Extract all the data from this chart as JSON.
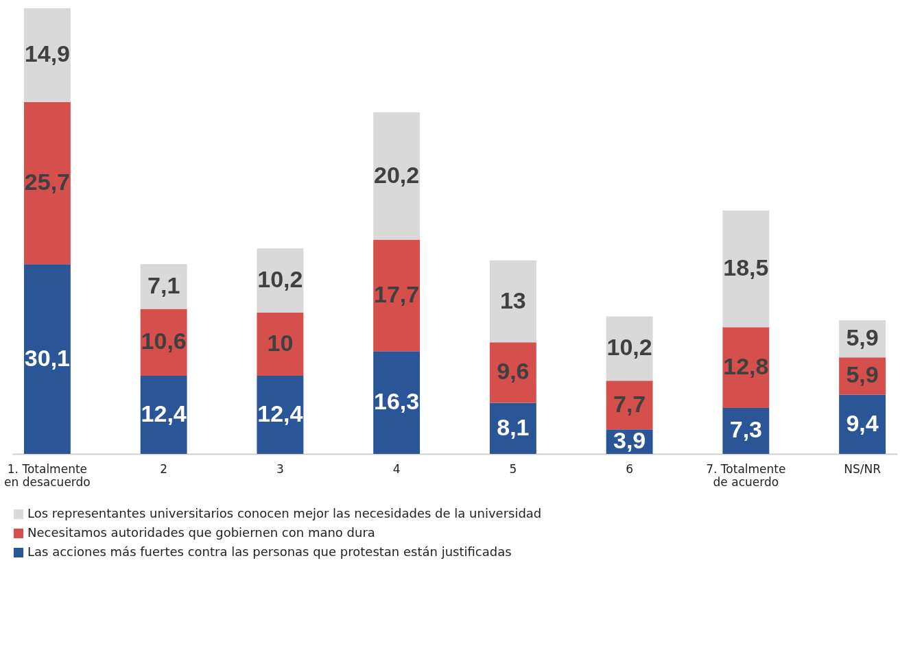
{
  "chart_data": {
    "type": "bar",
    "stacked": true,
    "legend": "bottom",
    "categories": [
      "1. Totalmente\nen desacuerdo",
      "2",
      "3",
      "4",
      "5",
      "6",
      "7. Totalmente\nde acuerdo",
      "NS/NR"
    ],
    "series": [
      {
        "name": "Las acciones más fuertes contra las personas que protestan están justificadas",
        "color": "#2a5597",
        "values": [
          30.1,
          12.4,
          12.4,
          16.3,
          8.1,
          3.9,
          7.3,
          9.4
        ],
        "value_labels": [
          "30,1",
          "12,4",
          "12,4",
          "16,3",
          "8,1",
          "3,9",
          "7,3",
          "9,4"
        ]
      },
      {
        "name": "Necesitamos autoridades que gobiernen con mano dura",
        "color": "#d54f4d",
        "values": [
          25.7,
          10.6,
          10,
          17.7,
          9.6,
          7.7,
          12.8,
          5.9
        ],
        "value_labels": [
          "25,7",
          "10,6",
          "10",
          "17,7",
          "9,6",
          "7,7",
          "12,8",
          "5,9"
        ]
      },
      {
        "name": "Los representantes  universitarios conocen mejor las necesidades de la universidad",
        "color": "#d9d9d9",
        "values": [
          14.9,
          7.1,
          10.2,
          20.2,
          13,
          10.2,
          18.5,
          5.9
        ],
        "value_labels": [
          "14,9",
          "7,1",
          "10,2",
          "20,2",
          "13",
          "10,2",
          "18,5",
          "5,9"
        ]
      }
    ]
  }
}
